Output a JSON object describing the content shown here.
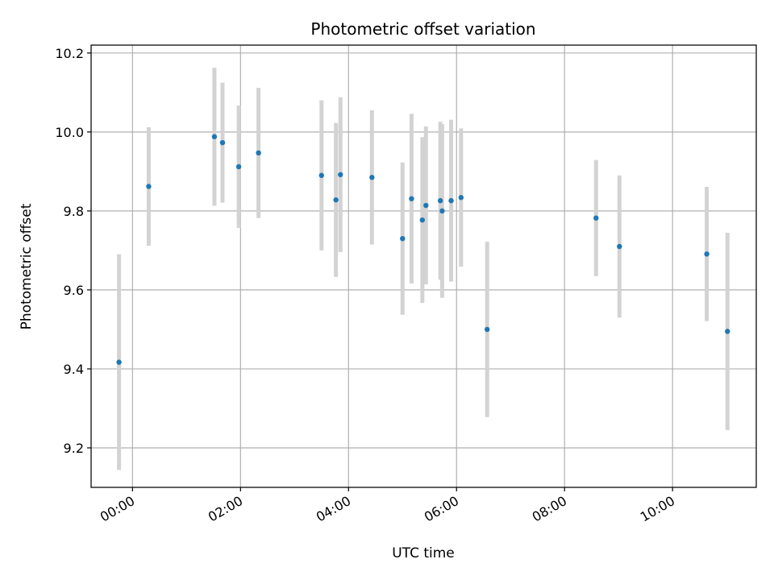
{
  "chart_data": {
    "type": "scatter",
    "title": "Photometric offset variation",
    "xlabel": "UTC time",
    "ylabel": "Photometric offset",
    "x_unit": "time of day (hours)",
    "xlim": [
      "-00:46",
      "11:33"
    ],
    "ylim": [
      9.1,
      10.22
    ],
    "x_ticks": [
      "00:00",
      "02:00",
      "04:00",
      "06:00",
      "08:00",
      "10:00"
    ],
    "y_ticks": [
      "9.2",
      "9.4",
      "9.6",
      "9.8",
      "10.0",
      "10.2"
    ],
    "grid": true,
    "legend": "none",
    "marker_color": "#1f77b4",
    "errorbar_color": "#d3d3d3",
    "points": [
      {
        "x": "23:45",
        "y": 9.417,
        "err": 0.273
      },
      {
        "x": "00:18",
        "y": 9.862,
        "err": 0.15
      },
      {
        "x": "01:31",
        "y": 9.988,
        "err": 0.175
      },
      {
        "x": "01:40",
        "y": 9.973,
        "err": 0.152
      },
      {
        "x": "01:58",
        "y": 9.912,
        "err": 0.155
      },
      {
        "x": "02:20",
        "y": 9.947,
        "err": 0.165
      },
      {
        "x": "03:30",
        "y": 9.89,
        "err": 0.19
      },
      {
        "x": "03:46",
        "y": 9.828,
        "err": 0.195
      },
      {
        "x": "03:51",
        "y": 9.892,
        "err": 0.196
      },
      {
        "x": "04:26",
        "y": 9.885,
        "err": 0.17
      },
      {
        "x": "05:00",
        "y": 9.73,
        "err": 0.193
      },
      {
        "x": "05:10",
        "y": 9.831,
        "err": 0.215
      },
      {
        "x": "05:22",
        "y": 9.777,
        "err": 0.21
      },
      {
        "x": "05:26",
        "y": 9.814,
        "err": 0.2
      },
      {
        "x": "05:42",
        "y": 9.826,
        "err": 0.2
      },
      {
        "x": "05:44",
        "y": 9.8,
        "err": 0.22
      },
      {
        "x": "05:54",
        "y": 9.826,
        "err": 0.205
      },
      {
        "x": "06:05",
        "y": 9.834,
        "err": 0.175
      },
      {
        "x": "06:34",
        "y": 9.5,
        "err": 0.222
      },
      {
        "x": "08:35",
        "y": 9.782,
        "err": 0.147
      },
      {
        "x": "09:01",
        "y": 9.71,
        "err": 0.18
      },
      {
        "x": "10:38",
        "y": 9.691,
        "err": 0.17
      },
      {
        "x": "11:01",
        "y": 9.495,
        "err": 0.25
      }
    ]
  }
}
